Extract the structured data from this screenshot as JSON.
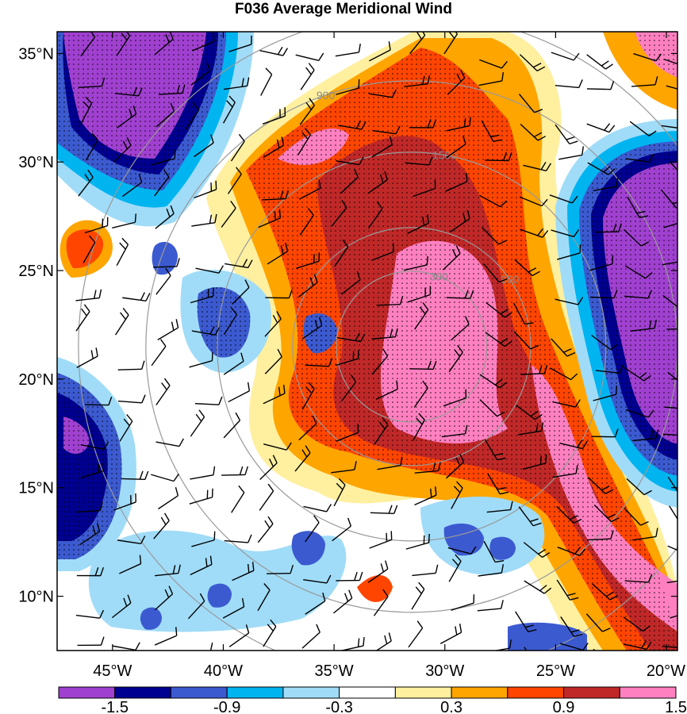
{
  "title": "F036 Average Meridional Wind",
  "chart_data": {
    "type": "heatmap",
    "title": "F036 Average Meridional Wind",
    "x_axis": {
      "range": [
        -47.5,
        -19.5
      ],
      "ticks": [
        -45,
        -40,
        -35,
        -30,
        -25,
        -20
      ],
      "tick_labels": [
        "45°W",
        "40°W",
        "35°W",
        "30°W",
        "25°W",
        "20°W"
      ]
    },
    "y_axis": {
      "range": [
        7.5,
        36.0
      ],
      "ticks": [
        10,
        15,
        20,
        25,
        30,
        35
      ],
      "tick_labels": [
        "10°N",
        "15°N",
        "20°N",
        "25°N",
        "30°N",
        "35°N"
      ]
    },
    "colorbar": {
      "colors": [
        "#a040d0",
        "#000090",
        "#3c5ad0",
        "#00b4f0",
        "#a0dcf8",
        "#ffffff",
        "#fff0a0",
        "#ffa500",
        "#ff4500",
        "#c02828",
        "#ff80c0"
      ],
      "labels": [
        "-1.5",
        "-0.9",
        "-0.3",
        "0.3",
        "0.9",
        "1.5"
      ]
    },
    "range_rings": {
      "center": [
        -31.5,
        21.5
      ],
      "labels": [
        "300",
        "900",
        "1500"
      ],
      "color": "#999999"
    },
    "stipple": "dots over |v| ≥ 0.9",
    "wind_barbs": true
  }
}
